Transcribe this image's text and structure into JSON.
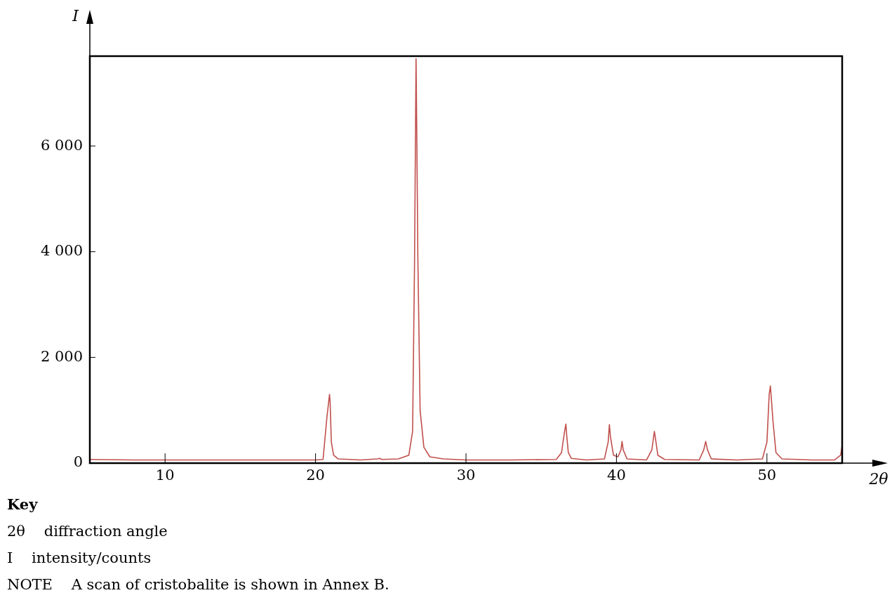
{
  "chart_data": {
    "type": "line",
    "xlabel": "2θ",
    "ylabel": "I",
    "series": [
      {
        "color": "#c0504d",
        "x": [
          5,
          8,
          10,
          12,
          15,
          18,
          20,
          20.5,
          20.75,
          20.85,
          20.93,
          20.97,
          21.05,
          21.2,
          21.5,
          23,
          24.1,
          24.25,
          24.4,
          25.5,
          26.2,
          26.45,
          26.58,
          26.68,
          26.74,
          26.8,
          26.95,
          27.2,
          27.6,
          28.5,
          30,
          33,
          36,
          36.35,
          36.55,
          36.64,
          36.7,
          36.8,
          37,
          38,
          39.2,
          39.45,
          39.53,
          39.6,
          39.8,
          40.1,
          40.3,
          40.37,
          40.45,
          40.7,
          42,
          42.35,
          42.52,
          42.6,
          42.75,
          43.2,
          45.5,
          45.8,
          45.93,
          46.05,
          46.3,
          48,
          49.7,
          50,
          50.15,
          50.23,
          50.3,
          50.4,
          50.6,
          51,
          53,
          54.5,
          54.9,
          55
        ],
        "values": [
          70,
          60,
          60,
          60,
          60,
          60,
          60,
          70,
          850,
          1100,
          1300,
          1150,
          400,
          150,
          80,
          60,
          80,
          90,
          70,
          80,
          150,
          600,
          3800,
          7650,
          5900,
          3900,
          1000,
          300,
          120,
          80,
          60,
          60,
          70,
          200,
          600,
          740,
          500,
          200,
          90,
          60,
          80,
          400,
          730,
          500,
          150,
          120,
          250,
          410,
          250,
          80,
          60,
          250,
          600,
          450,
          150,
          70,
          60,
          250,
          410,
          250,
          80,
          60,
          80,
          400,
          1300,
          1460,
          1200,
          800,
          200,
          80,
          60,
          60,
          150,
          340
        ]
      }
    ],
    "xlim": [
      5,
      55
    ],
    "xticks": [
      10,
      20,
      30,
      40,
      50
    ],
    "ylim": [
      0,
      7700
    ],
    "yticks": [
      {
        "value": 0,
        "label": "0"
      },
      {
        "value": 2000,
        "label": "2 000"
      },
      {
        "value": 4000,
        "label": "4 000"
      },
      {
        "value": 6000,
        "label": "6 000"
      }
    ],
    "grid": false,
    "legend": false,
    "marker": "none",
    "line_style": "solid",
    "annotations": [
      "Key",
      "2θ    diffraction angle",
      "I    intensity/counts",
      "NOTE    A scan of cristobalite is shown in Annex B."
    ]
  }
}
